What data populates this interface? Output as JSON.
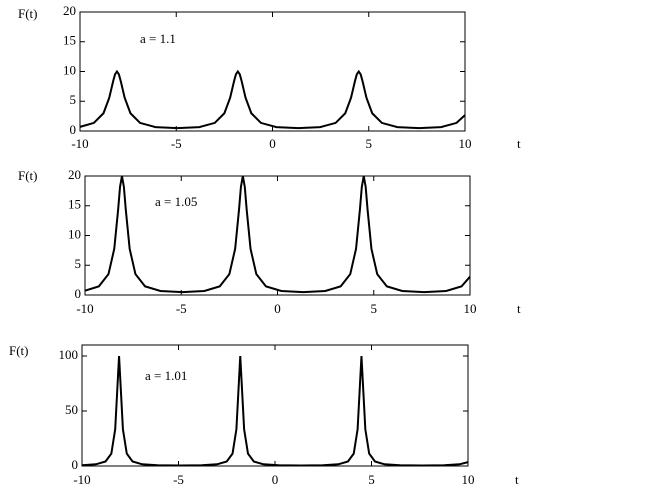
{
  "chart_data": [
    {
      "type": "line",
      "xlabel": "t",
      "ylabel": "F(t)",
      "annotation": "a = 1.1",
      "x": [
        -10,
        -9.28,
        -8.78,
        -8.48,
        -8.28,
        -8.18,
        -8.08,
        -7.98,
        -7.88,
        -7.68,
        -7.38,
        -6.88,
        -6.08,
        -4.94,
        -3.8,
        -3,
        -2.5,
        -2.2,
        -2,
        -1.9,
        -1.8,
        -1.7,
        -1.6,
        -1.4,
        -1.1,
        -0.6,
        0.2,
        1.34,
        2.48,
        3.28,
        3.78,
        4.08,
        4.28,
        4.38,
        4.48,
        4.58,
        4.68,
        4.88,
        5.18,
        5.68,
        6.48,
        7.62,
        8.76,
        9.56,
        10
      ],
      "series": [
        {
          "color": "#000000",
          "values": [
            0.69,
            1.36,
            2.98,
            5.59,
            8.34,
            9.52,
            10,
            9.52,
            8.34,
            5.59,
            2.98,
            1.36,
            0.66,
            0.48,
            0.66,
            1.36,
            2.98,
            5.59,
            8.34,
            9.52,
            10,
            9.52,
            8.34,
            5.59,
            2.98,
            1.36,
            0.66,
            0.48,
            0.66,
            1.36,
            2.98,
            5.59,
            8.34,
            9.52,
            10,
            9.52,
            8.34,
            5.59,
            2.98,
            1.36,
            0.66,
            0.48,
            0.66,
            1.36,
            2.67
          ]
        }
      ],
      "xlim": [
        -10,
        10
      ],
      "xticks": [
        -10,
        -5,
        0,
        5,
        10
      ],
      "ylim": [
        0,
        20
      ],
      "yticks": [
        0,
        5,
        10,
        15,
        20
      ]
    },
    {
      "type": "line",
      "xlabel": "t",
      "ylabel": "F(t)",
      "annotation": "a = 1.05",
      "x": [
        -10,
        -9.28,
        -8.78,
        -8.48,
        -8.28,
        -8.18,
        -8.08,
        -7.98,
        -7.88,
        -7.68,
        -7.38,
        -6.88,
        -6.08,
        -4.94,
        -3.8,
        -3,
        -2.5,
        -2.2,
        -2,
        -1.9,
        -1.8,
        -1.7,
        -1.6,
        -1.4,
        -1.1,
        -0.6,
        0.2,
        1.34,
        2.48,
        3.28,
        3.78,
        4.08,
        4.28,
        4.38,
        4.48,
        4.58,
        4.68,
        4.88,
        5.18,
        5.68,
        6.48,
        7.62,
        8.76,
        9.56,
        10
      ],
      "series": [
        {
          "color": "#000000",
          "values": [
            0.72,
            1.45,
            3.51,
            7.76,
            14.31,
            18.18,
            20,
            18.18,
            14.31,
            7.76,
            3.51,
            1.45,
            0.68,
            0.49,
            0.68,
            1.45,
            3.51,
            7.76,
            14.31,
            18.18,
            20,
            18.18,
            14.31,
            7.76,
            3.51,
            1.45,
            0.68,
            0.49,
            0.68,
            1.45,
            3.51,
            7.76,
            14.31,
            18.18,
            20,
            18.18,
            14.31,
            7.76,
            3.51,
            1.45,
            0.68,
            0.49,
            0.68,
            1.45,
            3.08
          ]
        }
      ],
      "xlim": [
        -10,
        10
      ],
      "xticks": [
        -10,
        -5,
        0,
        5,
        10
      ],
      "ylim": [
        0,
        20
      ],
      "yticks": [
        0,
        5,
        10,
        15,
        20
      ]
    },
    {
      "type": "line",
      "xlabel": "t",
      "ylabel": "F(t)",
      "annotation": "a = 1.01",
      "x": [
        -10,
        -9.28,
        -8.78,
        -8.48,
        -8.28,
        -8.18,
        -8.08,
        -7.98,
        -7.88,
        -7.68,
        -7.38,
        -6.88,
        -6.08,
        -4.94,
        -3.8,
        -3,
        -2.5,
        -2.2,
        -2,
        -1.9,
        -1.8,
        -1.7,
        -1.6,
        -1.4,
        -1.1,
        -0.6,
        0.2,
        1.34,
        2.48,
        3.28,
        3.78,
        4.08,
        4.28,
        4.38,
        4.48,
        4.58,
        4.68,
        4.88,
        5.18,
        5.68,
        6.48,
        7.62,
        8.76,
        9.56,
        10
      ],
      "series": [
        {
          "color": "#000000",
          "values": [
            0.74,
            1.54,
            4.08,
            11.25,
            33.4,
            66.7,
            100,
            66.7,
            33.4,
            11.25,
            4.08,
            1.54,
            0.7,
            0.5,
            0.7,
            1.54,
            4.08,
            11.25,
            33.4,
            66.7,
            100,
            66.7,
            33.4,
            11.25,
            4.08,
            1.54,
            0.7,
            0.5,
            0.7,
            1.54,
            4.08,
            11.25,
            33.4,
            66.7,
            100,
            66.7,
            33.4,
            11.25,
            4.08,
            1.54,
            0.7,
            0.5,
            0.7,
            1.54,
            3.51
          ]
        }
      ],
      "xlim": [
        -10,
        10
      ],
      "xticks": [
        -10,
        -5,
        0,
        5,
        10
      ],
      "ylim": [
        0,
        110
      ],
      "yticks": [
        0,
        50,
        100
      ]
    }
  ]
}
